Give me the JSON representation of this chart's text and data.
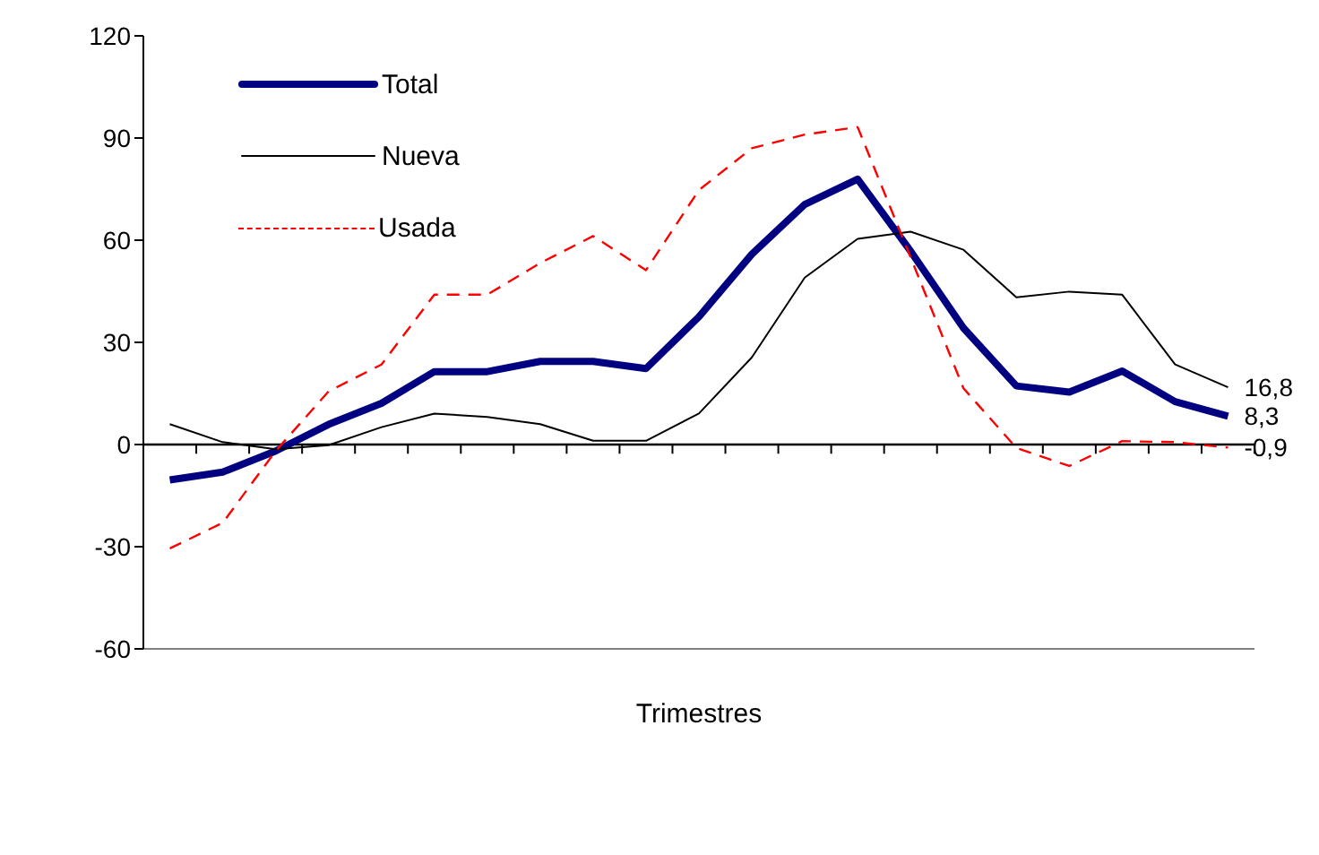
{
  "chart_data": {
    "type": "line",
    "xlabel": "Trimestres",
    "categories": [
      null,
      null,
      null,
      null,
      null,
      null,
      null,
      null,
      null,
      null,
      null,
      null,
      null,
      null,
      null,
      null,
      null,
      null,
      null,
      null,
      null
    ],
    "series": [
      {
        "name": "Total",
        "color": "#000080",
        "line_style": "solid",
        "values": [
          -10.4,
          -8.1,
          -1.9,
          5.9,
          12.1,
          21.4,
          21.4,
          24.4,
          24.4,
          22.3,
          37.5,
          55.9,
          70.5,
          77.9,
          56.8,
          34.2,
          17.2,
          15.4,
          21.6,
          12.6,
          8.3
        ],
        "value_labels": [
          null,
          null,
          null,
          null,
          null,
          null,
          null,
          null,
          null,
          null,
          null,
          null,
          null,
          null,
          null,
          null,
          null,
          null,
          null,
          null,
          "8,3"
        ]
      },
      {
        "name": "Nueva",
        "color": "#000000",
        "line_style": "solid",
        "values": [
          6,
          0.7,
          -1.4,
          -0.2,
          5.1,
          9.1,
          8.1,
          6,
          1.1,
          1.1,
          9.1,
          25.6,
          49,
          60.4,
          62.5,
          57.2,
          43.2,
          44.9,
          44,
          23.5,
          16.8
        ],
        "value_labels": [
          null,
          null,
          null,
          null,
          null,
          null,
          null,
          null,
          null,
          null,
          null,
          null,
          null,
          null,
          null,
          null,
          null,
          null,
          null,
          null,
          "16,8"
        ]
      },
      {
        "name": "Usada",
        "color": "#ff0000",
        "line_style": "dashed",
        "values": [
          -30.5,
          -23,
          -1.9,
          15.6,
          23.5,
          44,
          44,
          53.3,
          61.2,
          51.2,
          74.7,
          87,
          91,
          93.2,
          55,
          16.5,
          -1,
          -6.3,
          1,
          0.7,
          -0.9
        ],
        "value_labels": [
          null,
          null,
          null,
          null,
          null,
          null,
          null,
          null,
          null,
          null,
          null,
          null,
          null,
          null,
          null,
          null,
          null,
          null,
          null,
          null,
          "-0,9"
        ]
      }
    ],
    "ylim": [
      -60,
      120
    ],
    "yticks": [
      -60,
      -30,
      0,
      30,
      60,
      90,
      120
    ],
    "legend": "top left",
    "marker": "none"
  }
}
